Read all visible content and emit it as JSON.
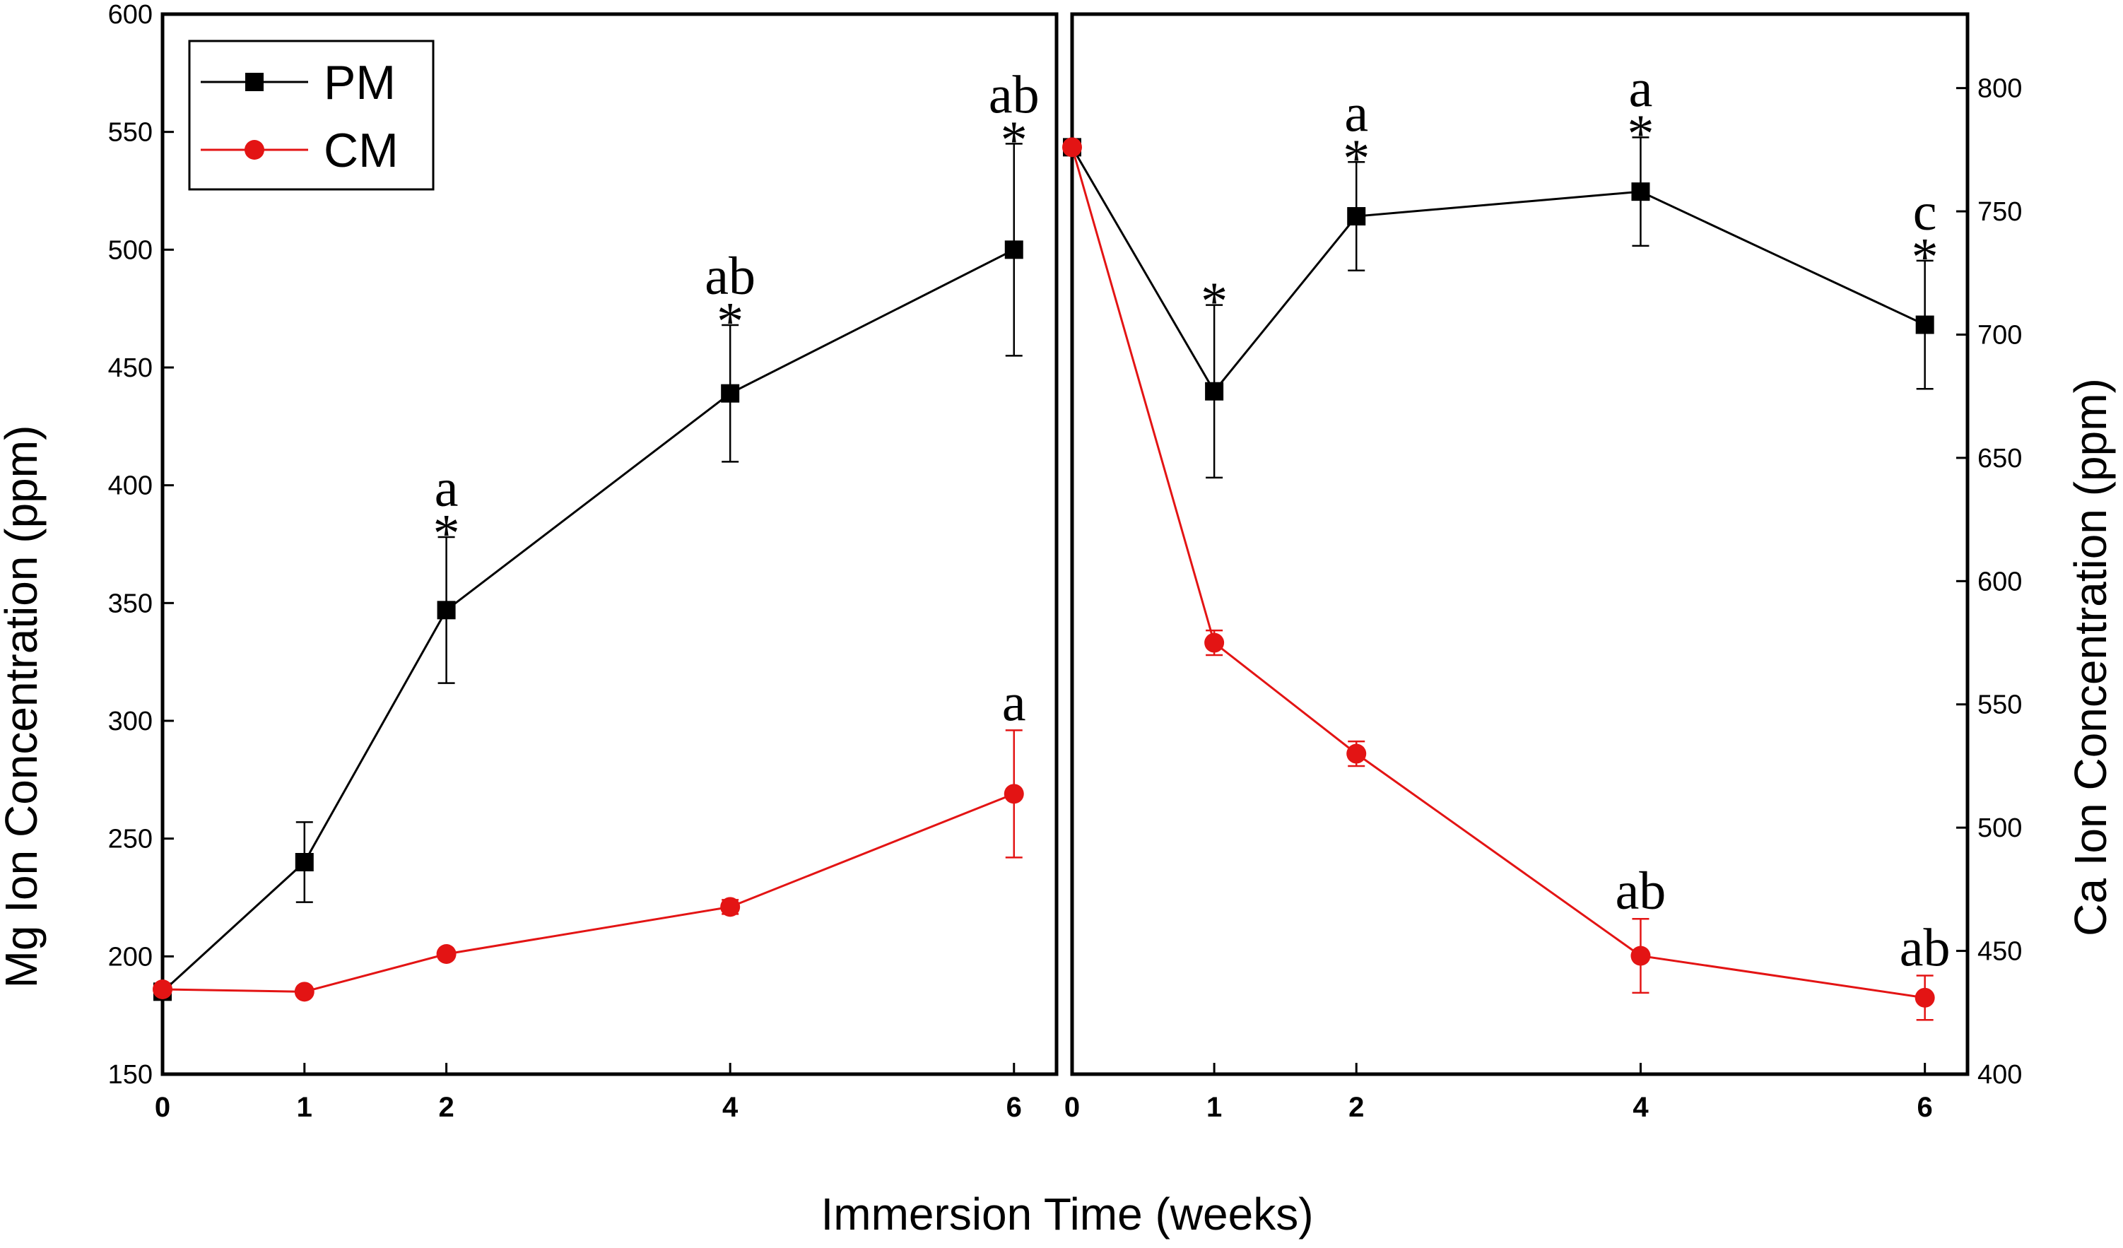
{
  "chart_data": [
    {
      "type": "line",
      "panel": "left",
      "title": "",
      "xlabel": "Immersion Time (weeks)",
      "ylabel": "Mg Ion Concentration (ppm)",
      "x": [
        0,
        1,
        2,
        4,
        6
      ],
      "xlim": [
        0,
        6.3
      ],
      "ylim": [
        150,
        600
      ],
      "xticks": [
        0,
        1,
        2,
        4,
        6
      ],
      "yticks": [
        150,
        200,
        250,
        300,
        350,
        400,
        450,
        500,
        550,
        600
      ],
      "series": [
        {
          "name": "PM",
          "color": "#000000",
          "marker": "square",
          "values": [
            185,
            240,
            347,
            439,
            500
          ],
          "errors": [
            0,
            17,
            31,
            29,
            45
          ],
          "annotations": [
            "",
            "",
            "a\n*",
            "ab\n*",
            "ab\n*"
          ]
        },
        {
          "name": "CM",
          "color": "#e31414",
          "marker": "circle",
          "values": [
            186,
            185,
            201,
            221,
            269
          ],
          "errors": [
            0,
            0,
            0,
            3,
            27
          ],
          "annotations": [
            "",
            "",
            "",
            "",
            "a"
          ]
        }
      ],
      "legend": {
        "position": "top-left",
        "entries": [
          "PM",
          "CM"
        ]
      }
    },
    {
      "type": "line",
      "panel": "right",
      "title": "",
      "xlabel": "Immersion Time (weeks)",
      "ylabel": "Ca Ion Concentration  (ppm)",
      "x": [
        0,
        1,
        2,
        4,
        6
      ],
      "xlim": [
        0,
        6.3
      ],
      "ylim": [
        400,
        830
      ],
      "xticks": [
        0,
        1,
        2,
        4,
        6
      ],
      "yticks": [
        400,
        450,
        500,
        550,
        600,
        650,
        700,
        750,
        800
      ],
      "series": [
        {
          "name": "PM",
          "color": "#000000",
          "marker": "square",
          "values": [
            776,
            677,
            748,
            758,
            704
          ],
          "errors": [
            0,
            35,
            22,
            22,
            26
          ],
          "annotations": [
            "",
            "*",
            "a\n*",
            "a\n*",
            "c\n*"
          ]
        },
        {
          "name": "CM",
          "color": "#e31414",
          "marker": "circle",
          "values": [
            776,
            575,
            530,
            448,
            431
          ],
          "errors": [
            0,
            5,
            5,
            15,
            9
          ],
          "annotations": [
            "",
            "",
            "",
            "ab",
            "ab"
          ]
        }
      ]
    }
  ]
}
